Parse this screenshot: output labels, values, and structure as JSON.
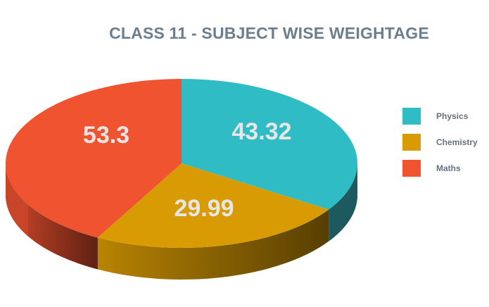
{
  "chart_data": {
    "type": "pie",
    "style": "3d",
    "title": "CLASS 11 - SUBJECT WISE WEIGHTAGE",
    "categories": [
      "Physics",
      "Chemistry",
      "Maths"
    ],
    "values": [
      43.32,
      29.99,
      53.3
    ],
    "data_labels": [
      "43.32",
      "29.99",
      "53.3"
    ],
    "colors": [
      "#2fbcc4",
      "#d99b04",
      "#f05330"
    ],
    "legend_position": "right"
  }
}
